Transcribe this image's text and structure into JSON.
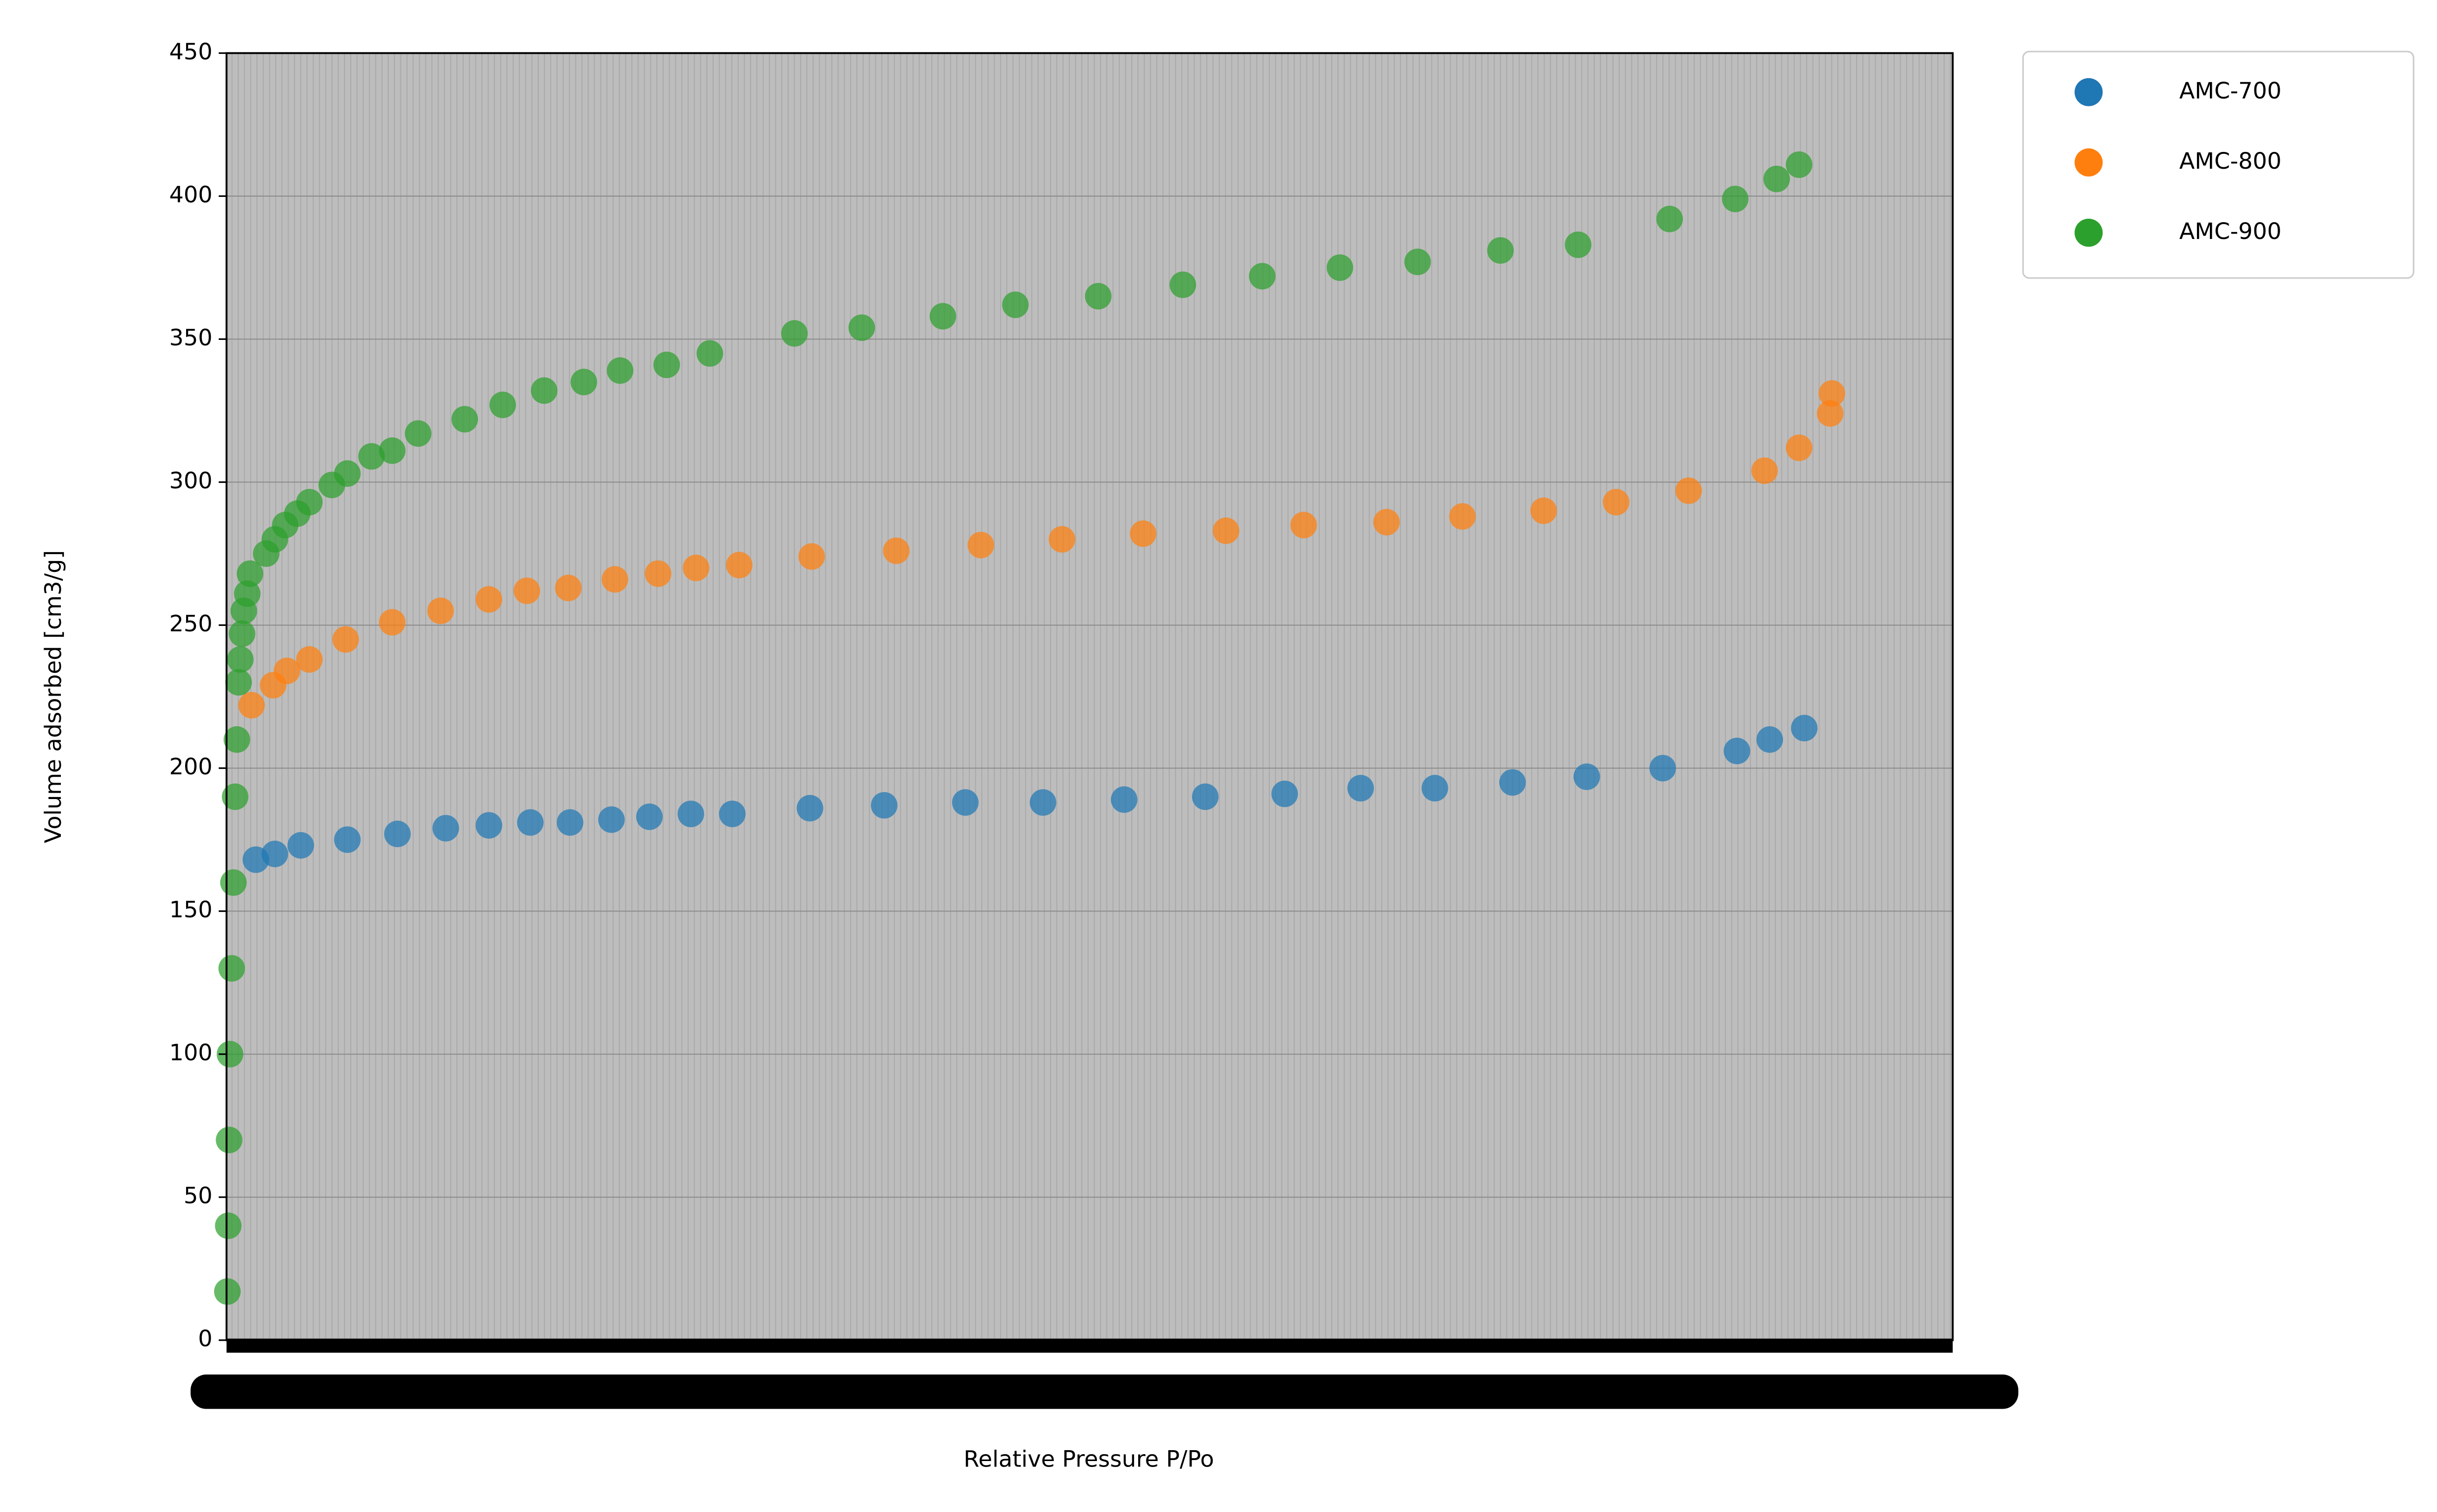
{
  "chart_data": {
    "type": "scatter",
    "xlabel": "Relative Pressure P/Po",
    "ylabel": "Volume adsorbed [cm3/g]",
    "xlim": [
      0,
      1
    ],
    "ylim": [
      0,
      450
    ],
    "yticks": [
      0,
      50,
      100,
      150,
      200,
      250,
      300,
      350,
      400,
      450
    ],
    "grid": true,
    "legend": "outside-right",
    "series": [
      {
        "name": "AMC-700",
        "color": "#1f77b4",
        "x": [
          0.017,
          0.028,
          0.043,
          0.07,
          0.099,
          0.127,
          0.152,
          0.176,
          0.199,
          0.223,
          0.245,
          0.269,
          0.293,
          0.338,
          0.381,
          0.428,
          0.473,
          0.52,
          0.567,
          0.613,
          0.657,
          0.7,
          0.745,
          0.788,
          0.832,
          0.875,
          0.894,
          0.914
        ],
        "values": [
          168,
          170,
          173,
          175,
          177,
          179,
          180,
          181,
          181,
          182,
          183,
          184,
          184,
          186,
          187,
          188,
          188,
          189,
          190,
          191,
          193,
          193,
          195,
          197,
          200,
          206,
          210,
          214
        ]
      },
      {
        "name": "AMC-800",
        "color": "#ff7f0e",
        "x": [
          0.0145,
          0.027,
          0.035,
          0.048,
          0.069,
          0.096,
          0.124,
          0.152,
          0.174,
          0.198,
          0.225,
          0.25,
          0.272,
          0.297,
          0.339,
          0.388,
          0.437,
          0.484,
          0.531,
          0.579,
          0.624,
          0.672,
          0.716,
          0.763,
          0.805,
          0.847,
          0.891,
          0.911,
          0.929,
          0.93
        ],
        "values": [
          222,
          229,
          234,
          238,
          245,
          251,
          255,
          259,
          262,
          263,
          266,
          268,
          270,
          271,
          274,
          276,
          278,
          280,
          282,
          283,
          285,
          286,
          288,
          290,
          293,
          297,
          304,
          312,
          324,
          331
        ]
      },
      {
        "name": "AMC-900",
        "color": "#2ca02c",
        "x": [
          0.0005,
          0.001,
          0.0015,
          0.002,
          0.003,
          0.004,
          0.005,
          0.006,
          0.007,
          0.008,
          0.009,
          0.01,
          0.012,
          0.0136,
          0.023,
          0.028,
          0.034,
          0.041,
          0.048,
          0.061,
          0.07,
          0.084,
          0.096,
          0.111,
          0.138,
          0.16,
          0.184,
          0.207,
          0.228,
          0.255,
          0.28,
          0.329,
          0.368,
          0.415,
          0.457,
          0.505,
          0.554,
          0.6,
          0.645,
          0.69,
          0.738,
          0.783,
          0.836,
          0.874,
          0.898,
          0.911
        ],
        "values": [
          17,
          40,
          70,
          100,
          130,
          160,
          190,
          210,
          230,
          238,
          247,
          255,
          261,
          268,
          275,
          280,
          285,
          289,
          293,
          299,
          303,
          309,
          311,
          317,
          322,
          327,
          332,
          335,
          339,
          341,
          345,
          352,
          354,
          358,
          362,
          365,
          369,
          372,
          375,
          377,
          381,
          383,
          392,
          399,
          406,
          411
        ]
      }
    ]
  }
}
